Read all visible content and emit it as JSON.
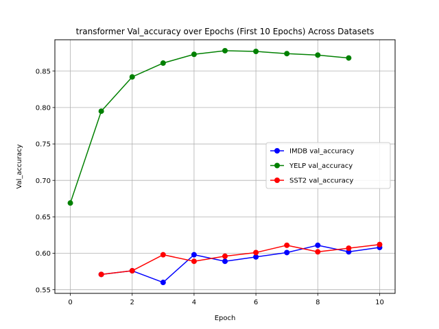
{
  "chart_data": {
    "type": "line",
    "title": "transformer Val_accuracy over Epochs (First 10 Epochs) Across Datasets",
    "xlabel": "Epoch",
    "ylabel": "Val_accuracy",
    "xlim": [
      -0.5,
      10.5
    ],
    "ylim": [
      0.545,
      0.893
    ],
    "x_ticks": [
      0,
      2,
      4,
      6,
      8,
      10
    ],
    "y_ticks": [
      0.55,
      0.6,
      0.65,
      0.7,
      0.75,
      0.8,
      0.85
    ],
    "grid": true,
    "legend_position": "center-right",
    "series": [
      {
        "name": "IMDB val_accuracy",
        "color": "#0000ff",
        "x": [
          1,
          2,
          3,
          4,
          5,
          6,
          7,
          8,
          9,
          10
        ],
        "values": [
          0.571,
          0.576,
          0.56,
          0.598,
          0.589,
          0.595,
          0.601,
          0.611,
          0.602,
          0.608
        ]
      },
      {
        "name": "YELP val_accuracy",
        "color": "#008000",
        "x": [
          0,
          1,
          2,
          3,
          4,
          5,
          6,
          7,
          8,
          9
        ],
        "values": [
          0.669,
          0.795,
          0.842,
          0.861,
          0.873,
          0.878,
          0.877,
          0.874,
          0.872,
          0.868
        ]
      },
      {
        "name": "SST2 val_accuracy",
        "color": "#ff0000",
        "x": [
          1,
          2,
          3,
          4,
          5,
          6,
          7,
          8,
          9,
          10
        ],
        "values": [
          0.571,
          0.576,
          0.598,
          0.589,
          0.596,
          0.601,
          0.611,
          0.602,
          0.607,
          0.612
        ]
      }
    ]
  }
}
